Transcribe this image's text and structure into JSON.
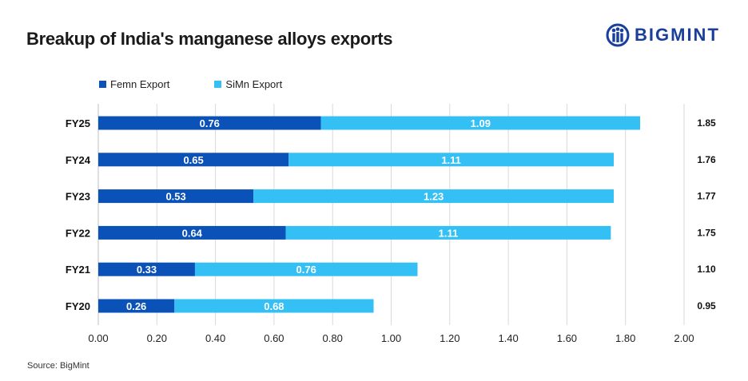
{
  "title": "Breakup of India's manganese alloys exports",
  "logo": {
    "text": "BIGMINT"
  },
  "source": "Source: BigMint",
  "colors": {
    "femn": "#0b52b8",
    "simn": "#35c0f5",
    "grid": "#d9d9d9"
  },
  "chart_data": {
    "type": "bar",
    "orientation": "horizontal",
    "stacked": true,
    "categories": [
      "FY25",
      "FY24",
      "FY23",
      "FY22",
      "FY21",
      "FY20"
    ],
    "series": [
      {
        "name": "Femn Export",
        "values": [
          0.76,
          0.65,
          0.53,
          0.64,
          0.33,
          0.26
        ],
        "labels": [
          "0.76",
          "0.65",
          "0.53",
          "0.64",
          "0.33",
          "0.26"
        ]
      },
      {
        "name": "SiMn Export",
        "values": [
          1.09,
          1.11,
          1.23,
          1.11,
          0.76,
          0.68
        ],
        "labels": [
          "1.09",
          "1.11",
          "1.23",
          "1.11",
          "0.76",
          "0.68"
        ]
      }
    ],
    "totals": [
      "1.85",
      "1.76",
      "1.77",
      "1.75",
      "1.10",
      "0.95"
    ],
    "xlim": [
      0,
      2
    ],
    "xticks": [
      "0.00",
      "0.20",
      "0.40",
      "0.60",
      "0.80",
      "1.00",
      "1.20",
      "1.40",
      "1.60",
      "1.80",
      "2.00"
    ],
    "grid": true,
    "legend_position": "top-left"
  }
}
